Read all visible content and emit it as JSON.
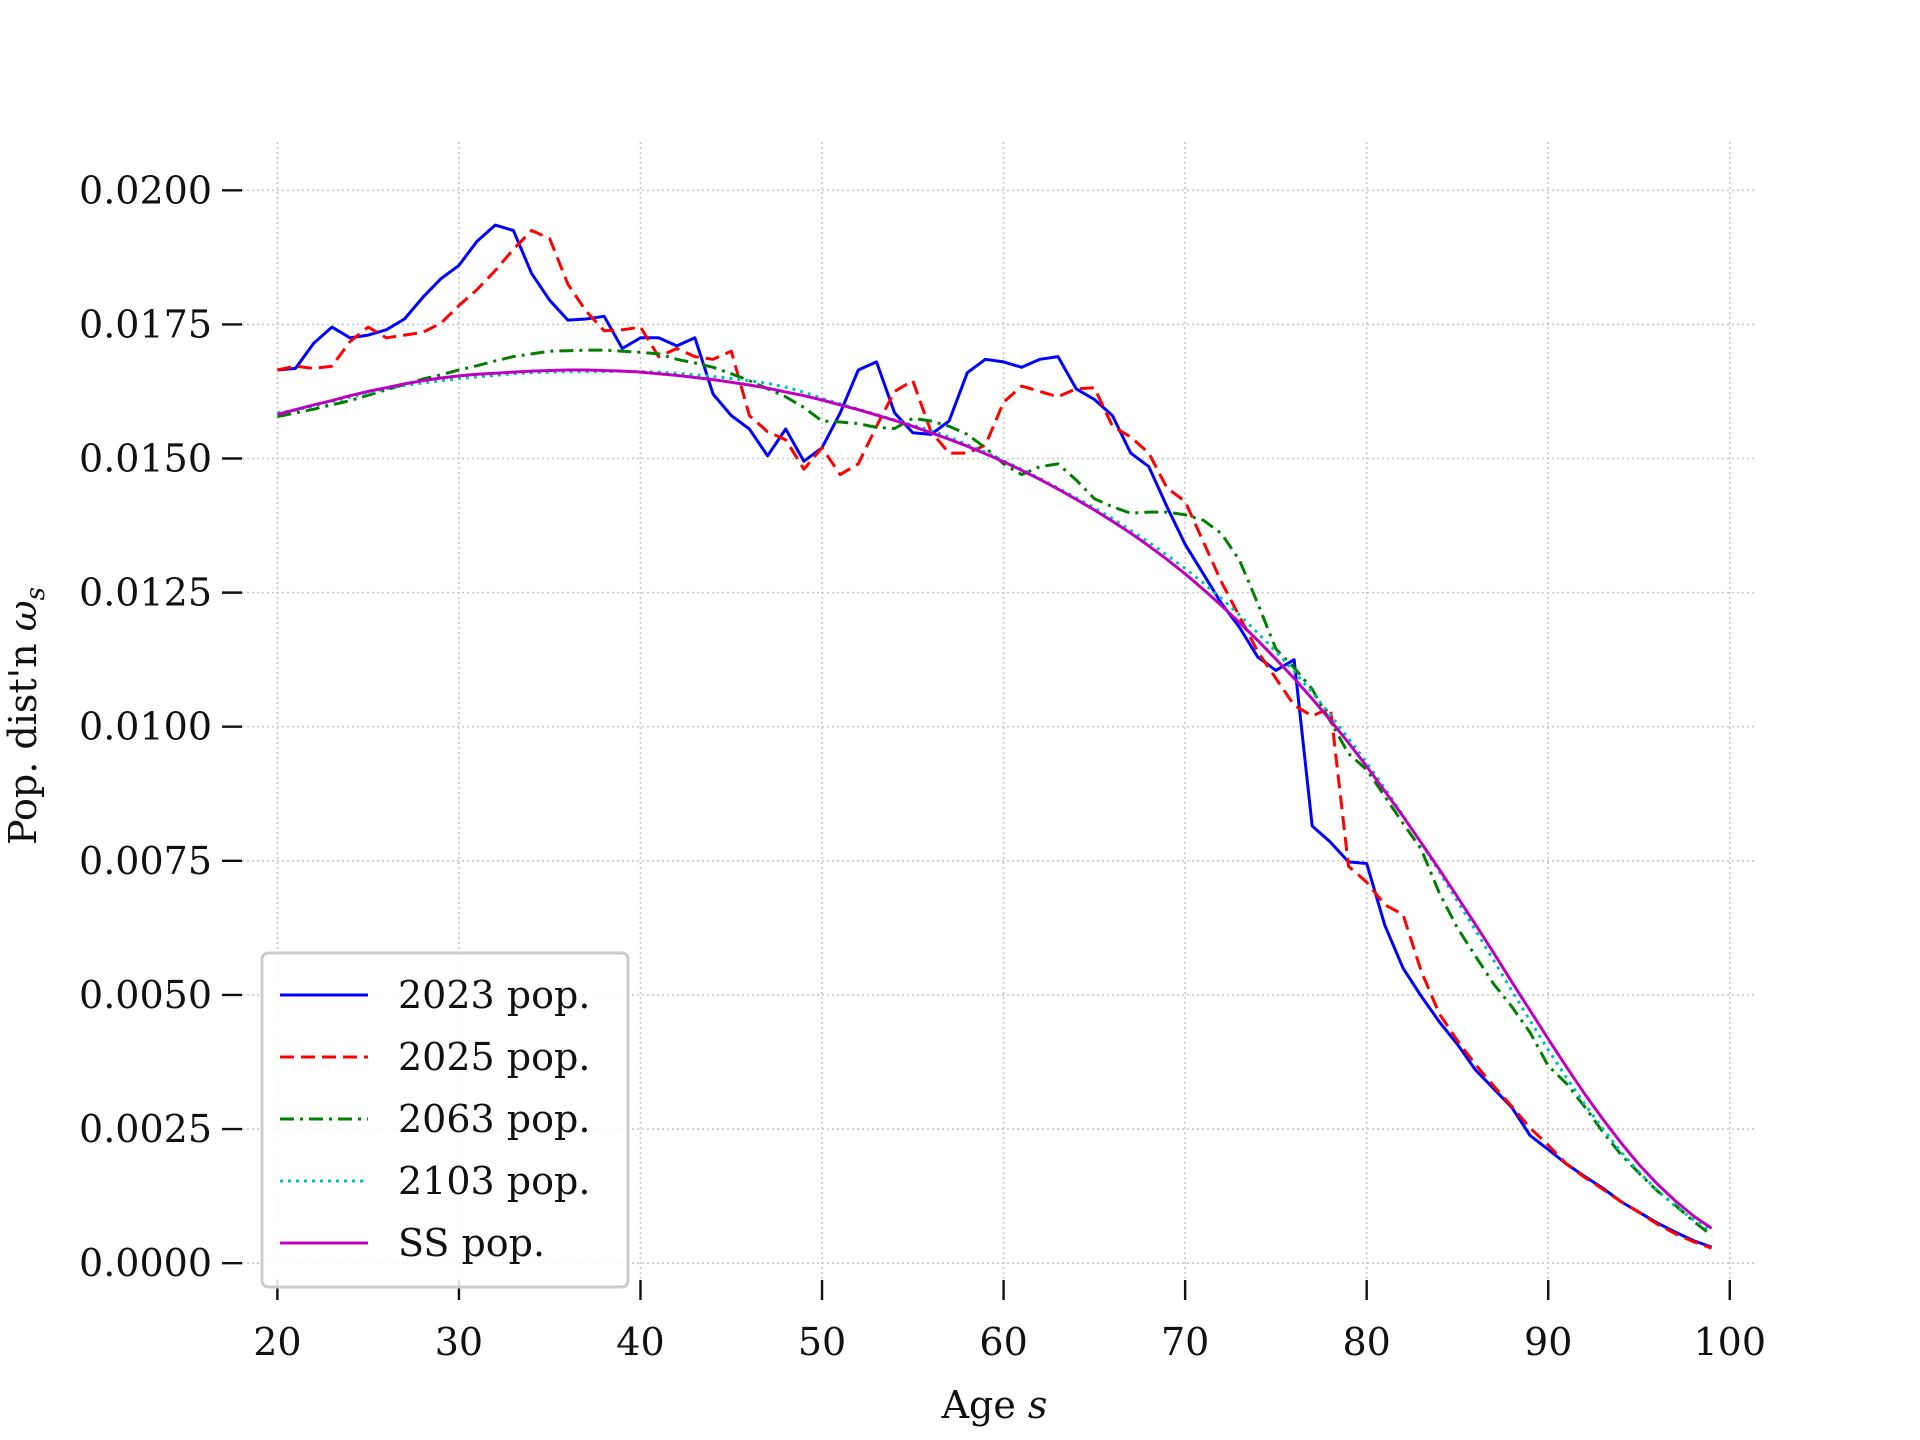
{
  "chart_data": {
    "type": "line",
    "title": "",
    "xlabel": "Age",
    "xlabel_var": "s",
    "ylabel": "Pop. dist'n",
    "ylabel_var": "ω",
    "ylabel_sub": "s",
    "xlim": [
      17.5,
      101.5
    ],
    "ylim": [
      -0.0005,
      0.0209
    ],
    "xticks": [
      20,
      30,
      40,
      50,
      60,
      70,
      80,
      90,
      100
    ],
    "yticks": [
      0.0,
      0.0025,
      0.005,
      0.0075,
      0.01,
      0.0125,
      0.015,
      0.0175,
      0.02
    ],
    "xtick_labels": [
      "20",
      "30",
      "40",
      "50",
      "60",
      "70",
      "80",
      "90",
      "100"
    ],
    "ytick_labels": [
      "0.0000",
      "0.0025",
      "0.0050",
      "0.0075",
      "0.0100",
      "0.0125",
      "0.0150",
      "0.0175",
      "0.0200"
    ],
    "grid": true,
    "legend_position": "lower-left",
    "x": [
      20,
      21,
      22,
      23,
      24,
      25,
      26,
      27,
      28,
      29,
      30,
      31,
      32,
      33,
      34,
      35,
      36,
      37,
      38,
      39,
      40,
      41,
      42,
      43,
      44,
      45,
      46,
      47,
      48,
      49,
      50,
      51,
      52,
      53,
      54,
      55,
      56,
      57,
      58,
      59,
      60,
      61,
      62,
      63,
      64,
      65,
      66,
      67,
      68,
      69,
      70,
      71,
      72,
      73,
      74,
      75,
      76,
      77,
      78,
      79,
      80,
      81,
      82,
      83,
      84,
      85,
      86,
      87,
      88,
      89,
      90,
      91,
      92,
      93,
      94,
      95,
      96,
      97,
      98,
      99
    ],
    "series": [
      {
        "name": "2023 pop.",
        "color": "#0000ff",
        "dash": "solid",
        "values": [
          0.01665,
          0.01668,
          0.01715,
          0.01745,
          0.01725,
          0.0173,
          0.0174,
          0.0176,
          0.018,
          0.01835,
          0.0186,
          0.01905,
          0.01935,
          0.01925,
          0.01845,
          0.01795,
          0.01758,
          0.0176,
          0.01765,
          0.01705,
          0.01725,
          0.01725,
          0.0171,
          0.01725,
          0.0162,
          0.0158,
          0.01555,
          0.01505,
          0.01555,
          0.01495,
          0.0152,
          0.01585,
          0.01665,
          0.0168,
          0.01585,
          0.01548,
          0.01545,
          0.0157,
          0.0166,
          0.01685,
          0.0168,
          0.0167,
          0.01685,
          0.0169,
          0.0163,
          0.0161,
          0.0158,
          0.0151,
          0.01485,
          0.0141,
          0.0134,
          0.01285,
          0.0123,
          0.01185,
          0.0113,
          0.01105,
          0.01125,
          0.00815,
          0.00785,
          0.00748,
          0.00745,
          0.0063,
          0.0055,
          0.00498,
          0.0045,
          0.00408,
          0.0036,
          0.00325,
          0.0029,
          0.00238,
          0.00212,
          0.00185,
          0.00162,
          0.0014,
          0.00115,
          0.00095,
          0.00075,
          0.00058,
          0.00042,
          0.0003
        ]
      },
      {
        "name": "2025 pop.",
        "color": "#ff0000",
        "dash": "dashed",
        "values": [
          0.01665,
          0.01672,
          0.01668,
          0.01672,
          0.01718,
          0.01745,
          0.01725,
          0.0173,
          0.01735,
          0.01752,
          0.01785,
          0.01815,
          0.0185,
          0.0189,
          0.01925,
          0.0191,
          0.01825,
          0.01775,
          0.01738,
          0.0174,
          0.01745,
          0.0169,
          0.01705,
          0.0169,
          0.01685,
          0.017,
          0.0158,
          0.0155,
          0.01535,
          0.0148,
          0.0152,
          0.0147,
          0.0149,
          0.0156,
          0.01625,
          0.01645,
          0.0155,
          0.0151,
          0.0151,
          0.01525,
          0.01605,
          0.01635,
          0.01625,
          0.01615,
          0.0163,
          0.01632,
          0.0156,
          0.0154,
          0.0151,
          0.01445,
          0.0142,
          0.01345,
          0.0127,
          0.01205,
          0.0114,
          0.0109,
          0.0104,
          0.0102,
          0.01035,
          0.0074,
          0.0071,
          0.00668,
          0.0065,
          0.00545,
          0.00465,
          0.00415,
          0.0037,
          0.0033,
          0.00292,
          0.00252,
          0.0022,
          0.00185,
          0.0016,
          0.00138,
          0.00115,
          0.00095,
          0.00073,
          0.00055,
          0.0004,
          0.00028
        ]
      },
      {
        "name": "2063 pop.",
        "color": "#008000",
        "dash": "dashdot",
        "values": [
          0.01578,
          0.01585,
          0.01592,
          0.016,
          0.01608,
          0.01618,
          0.01628,
          0.01638,
          0.01648,
          0.01656,
          0.01665,
          0.01673,
          0.01682,
          0.0169,
          0.01695,
          0.017,
          0.01701,
          0.01702,
          0.01702,
          0.017,
          0.01698,
          0.01695,
          0.01685,
          0.01678,
          0.0167,
          0.01658,
          0.01645,
          0.0163,
          0.01615,
          0.01595,
          0.0157,
          0.01568,
          0.01565,
          0.01558,
          0.01556,
          0.01575,
          0.0157,
          0.0156,
          0.01545,
          0.0152,
          0.0149,
          0.0147,
          0.01485,
          0.0149,
          0.0146,
          0.01425,
          0.0141,
          0.01398,
          0.014,
          0.014,
          0.01395,
          0.01385,
          0.0136,
          0.0131,
          0.0123,
          0.01145,
          0.0111,
          0.0107,
          0.0101,
          0.0095,
          0.0092,
          0.0087,
          0.0082,
          0.00772,
          0.0069,
          0.00625,
          0.00572,
          0.0052,
          0.00478,
          0.0043,
          0.00368,
          0.00335,
          0.00292,
          0.00245,
          0.00203,
          0.00168,
          0.00135,
          0.00108,
          0.00078,
          0.00052
        ]
      },
      {
        "name": "2103 pop.",
        "color": "#00bfbf",
        "dash": "dotted",
        "values": [
          0.01585,
          0.0159,
          0.01598,
          0.01606,
          0.01614,
          0.01622,
          0.0163,
          0.01636,
          0.01641,
          0.01645,
          0.01649,
          0.01652,
          0.01655,
          0.01658,
          0.0166,
          0.01661,
          0.01662,
          0.01662,
          0.01662,
          0.01663,
          0.01662,
          0.01661,
          0.01659,
          0.01656,
          0.01653,
          0.01649,
          0.01645,
          0.0164,
          0.01633,
          0.01624,
          0.01612,
          0.01602,
          0.01592,
          0.01582,
          0.01572,
          0.01562,
          0.01552,
          0.0154,
          0.01526,
          0.01512,
          0.01496,
          0.0148,
          0.01463,
          0.01445,
          0.01427,
          0.01408,
          0.01388,
          0.01366,
          0.01344,
          0.0132,
          0.01295,
          0.01268,
          0.01239,
          0.01208,
          0.01175,
          0.0114,
          0.01103,
          0.01064,
          0.01022,
          0.00978,
          0.00933,
          0.00885,
          0.00835,
          0.00783,
          0.0073,
          0.00675,
          0.0062,
          0.00564,
          0.00508,
          0.00452,
          0.00398,
          0.00346,
          0.00297,
          0.00251,
          0.00208,
          0.0017,
          0.00136,
          0.00106,
          0.00081,
          0.0006
        ]
      },
      {
        "name": "SS pop.",
        "color": "#bf00bf",
        "dash": "solid",
        "values": [
          0.01582,
          0.01591,
          0.016,
          0.01608,
          0.01617,
          0.01625,
          0.01632,
          0.01639,
          0.01645,
          0.0165,
          0.01654,
          0.01657,
          0.01659,
          0.01661,
          0.01663,
          0.01664,
          0.01665,
          0.01665,
          0.01664,
          0.01663,
          0.01661,
          0.01658,
          0.01655,
          0.01651,
          0.01647,
          0.01642,
          0.01637,
          0.01631,
          0.01624,
          0.01617,
          0.01609,
          0.016,
          0.01591,
          0.01581,
          0.01571,
          0.0156,
          0.01548,
          0.01536,
          0.01523,
          0.01509,
          0.01494,
          0.01478,
          0.01461,
          0.01443,
          0.01424,
          0.01404,
          0.01383,
          0.01361,
          0.01337,
          0.01312,
          0.01285,
          0.01256,
          0.01226,
          0.01194,
          0.01161,
          0.01126,
          0.0109,
          0.01052,
          0.01012,
          0.0097,
          0.00926,
          0.0088,
          0.00833,
          0.00784,
          0.00734,
          0.00683,
          0.00631,
          0.00578,
          0.00524,
          0.00471,
          0.00418,
          0.00366,
          0.00316,
          0.00269,
          0.00225,
          0.00184,
          0.00148,
          0.00116,
          0.00088,
          0.00065
        ]
      }
    ]
  }
}
